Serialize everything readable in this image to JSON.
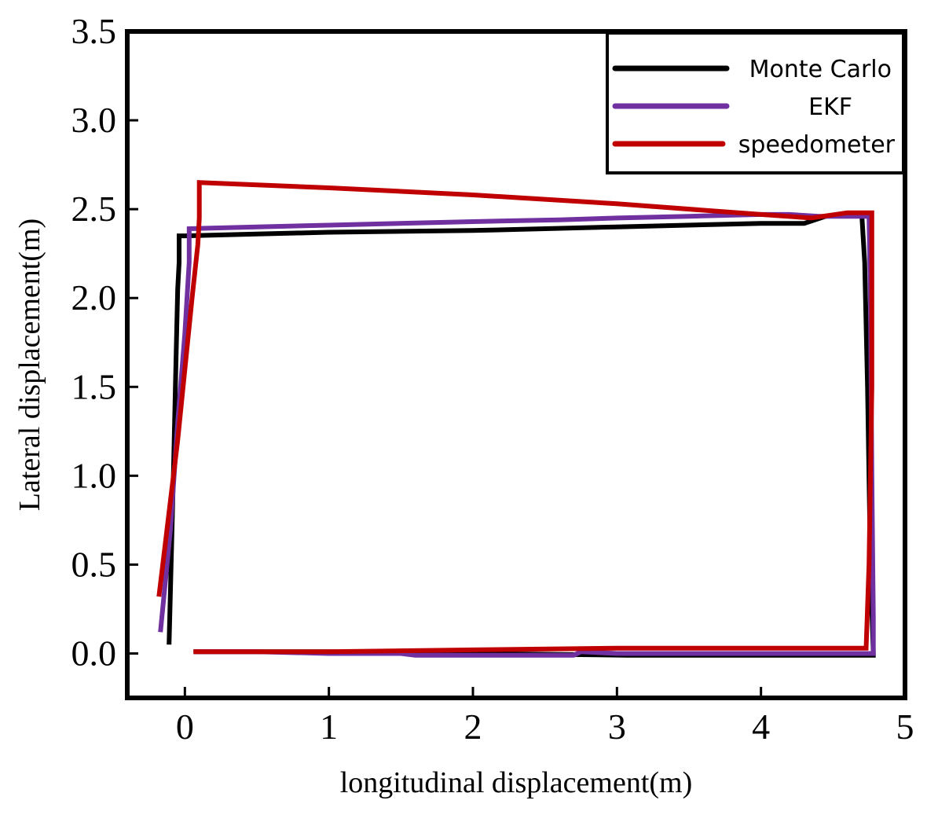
{
  "chart_data": {
    "type": "line",
    "xlabel": "longitudinal displacement(m)",
    "ylabel": "Lateral displacement(m)",
    "xlim": [
      -0.4,
      5.0
    ],
    "ylim": [
      -0.25,
      3.5
    ],
    "x_ticks": [
      0,
      1,
      2,
      3,
      4,
      5
    ],
    "x_tick_labels": [
      "0",
      "1",
      "2",
      "3",
      "4",
      "5"
    ],
    "y_ticks": [
      0.0,
      0.5,
      1.0,
      1.5,
      2.0,
      2.5,
      3.0,
      3.5
    ],
    "y_tick_labels": [
      "0.0",
      "0.5",
      "1.0",
      "1.5",
      "2.0",
      "2.5",
      "3.0",
      "3.5"
    ],
    "grid": false,
    "legend_position": "top-right",
    "series": [
      {
        "name": "Monte Carlo",
        "color": "#000000",
        "x": [
          -0.11,
          -0.08,
          -0.06,
          -0.05,
          -0.04,
          -0.04,
          0.0,
          0.5,
          1.0,
          2.0,
          3.0,
          4.0,
          4.3,
          4.45,
          4.55,
          4.7,
          4.72,
          4.74,
          4.76,
          4.78,
          4.78,
          4.0,
          3.07,
          2.0,
          1.0,
          0.06
        ],
        "y": [
          0.05,
          1.0,
          1.7,
          2.05,
          2.2,
          2.35,
          2.35,
          2.36,
          2.37,
          2.38,
          2.4,
          2.42,
          2.42,
          2.46,
          2.47,
          2.47,
          2.2,
          1.5,
          0.5,
          0.0,
          -0.01,
          -0.01,
          -0.01,
          0.0,
          0.01,
          0.01
        ]
      },
      {
        "name": "EKF",
        "color": "#7030a0",
        "x": [
          -0.17,
          -0.1,
          -0.05,
          0.0,
          0.03,
          0.03,
          0.5,
          1.0,
          2.0,
          2.6,
          3.0,
          3.5,
          4.0,
          4.2,
          4.4,
          4.75,
          4.76,
          4.77,
          4.78,
          4.78,
          4.0,
          3.0,
          2.75,
          2.7,
          2.0,
          1.6,
          1.5,
          1.0,
          0.5,
          0.07
        ],
        "y": [
          0.12,
          0.7,
          1.3,
          1.8,
          2.2,
          2.39,
          2.4,
          2.41,
          2.43,
          2.44,
          2.45,
          2.46,
          2.47,
          2.47,
          2.46,
          2.46,
          2.0,
          1.0,
          0.2,
          0.0,
          0.0,
          0.0,
          0.01,
          -0.01,
          -0.01,
          -0.01,
          0.0,
          0.0,
          0.01,
          0.01
        ]
      },
      {
        "name": "speedometer",
        "color": "#c00000",
        "x": [
          -0.18,
          -0.05,
          0.05,
          0.09,
          0.1,
          0.1,
          1.0,
          2.0,
          3.0,
          4.0,
          4.35,
          4.6,
          4.77,
          4.77,
          4.75,
          4.73,
          4.72,
          4.0,
          3.0,
          2.0,
          1.0,
          0.06
        ],
        "y": [
          0.32,
          1.2,
          2.0,
          2.3,
          2.45,
          2.65,
          2.62,
          2.58,
          2.53,
          2.47,
          2.45,
          2.48,
          2.48,
          1.5,
          0.5,
          0.03,
          0.03,
          0.03,
          0.03,
          0.02,
          0.01,
          0.01
        ]
      }
    ]
  }
}
